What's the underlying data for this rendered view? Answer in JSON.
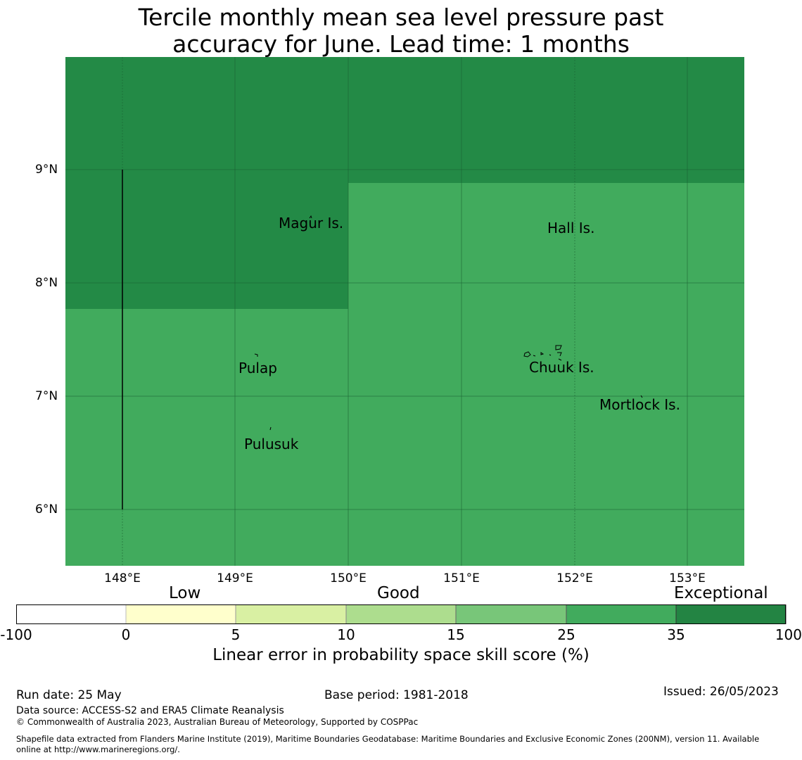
{
  "title": {
    "line1": "Tercile monthly mean sea level pressure past",
    "line2": "accuracy for June. Lead time: 1 months"
  },
  "map": {
    "lat_labels": [
      "9°N",
      "8°N",
      "7°N",
      "6°N"
    ],
    "lon_labels": [
      "148°E",
      "149°E",
      "150°E",
      "151°E",
      "152°E",
      "153°E"
    ],
    "places": [
      {
        "name": "Magur Is."
      },
      {
        "name": "Hall Is."
      },
      {
        "name": "Pulap"
      },
      {
        "name": "Chuuk Is."
      },
      {
        "name": "Mortlock Is."
      },
      {
        "name": "Pulusuk"
      }
    ],
    "colors": {
      "exceptional": "#238a46",
      "good_high": "#41ab5d"
    }
  },
  "colorbar": {
    "categories": [
      "Low",
      "Good",
      "Exceptional"
    ],
    "ticks": [
      "-100",
      "0",
      "5",
      "10",
      "15",
      "25",
      "35",
      "100"
    ],
    "colors": [
      "#ffffff",
      "#ffffcc",
      "#d9f0a3",
      "#addd8e",
      "#78c679",
      "#41ab5d",
      "#238443"
    ],
    "label": "Linear error in probability space skill score (%)"
  },
  "footer": {
    "run_date": "Run date: 25 May",
    "base_period": "Base period: 1981-2018",
    "issued": "Issued: 26/05/2023",
    "data_source": "Data source: ACCESS-S2 and ERA5 Climate Reanalysis",
    "copyright": "© Commonwealth of Australia 2023, Australian Bureau of Meteorology, Supported by COSPPac",
    "shapefile_line1": "Shapefile data extracted from Flanders Marine Institute (2019), Maritime Boundaries Geodatabase: Maritime Boundaries and Exclusive Economic Zones (200NM), version 11. Available",
    "shapefile_line2": "online at http://www.marineregions.org/."
  }
}
